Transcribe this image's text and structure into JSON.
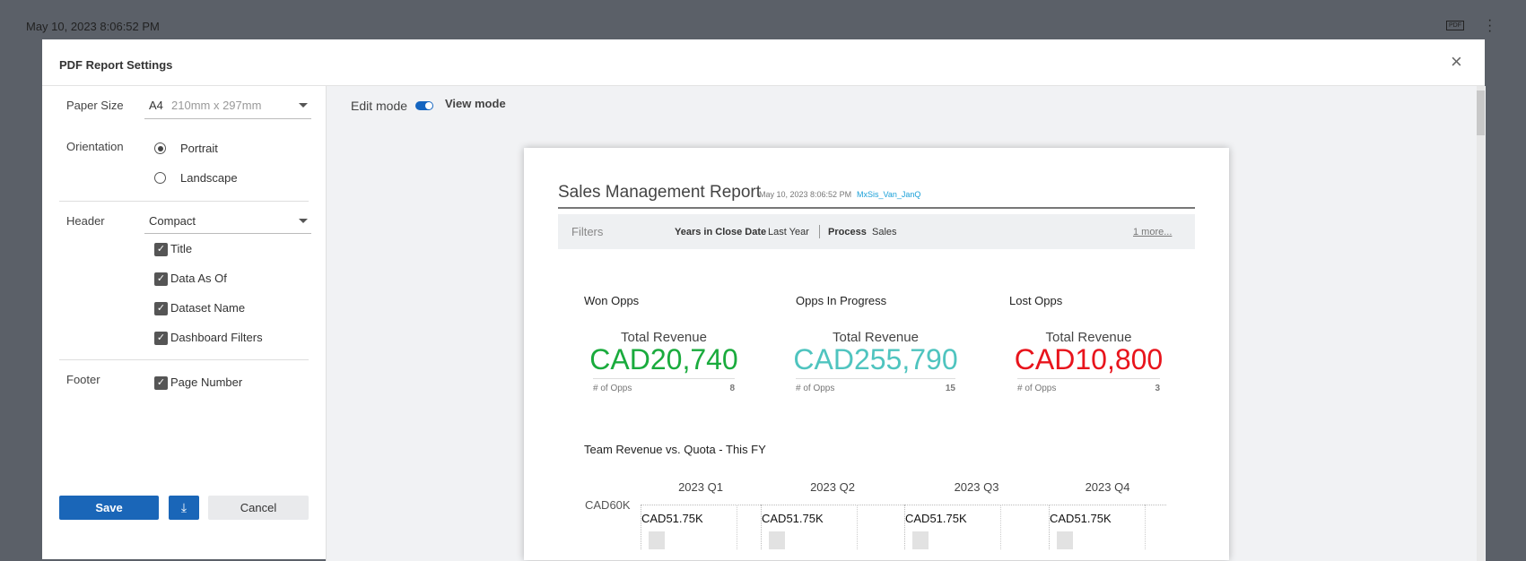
{
  "topbar": {
    "timestamp": "May 10, 2023 8:06:52 PM",
    "pdf_icon": "PDF"
  },
  "dialog": {
    "title": "PDF Report Settings",
    "settings": {
      "paper_size": {
        "label": "Paper Size",
        "value": "A4",
        "detail": "210mm x 297mm"
      },
      "orientation": {
        "label": "Orientation",
        "options": [
          {
            "text": "Portrait",
            "selected": true
          },
          {
            "text": "Landscape",
            "selected": false
          }
        ]
      },
      "header": {
        "label": "Header",
        "value": "Compact",
        "options": [
          {
            "text": "Title",
            "checked": true
          },
          {
            "text": "Data As Of",
            "checked": true
          },
          {
            "text": "Dataset Name",
            "checked": true
          },
          {
            "text": "Dashboard Filters",
            "checked": true
          }
        ]
      },
      "footer": {
        "label": "Footer",
        "options": [
          {
            "text": "Page Number",
            "checked": true
          }
        ]
      }
    },
    "buttons": {
      "save": "Save",
      "cancel": "Cancel"
    },
    "mode": {
      "edit": "Edit mode",
      "view": "View mode"
    }
  },
  "report": {
    "title": "Sales Management Report",
    "date": "May 10, 2023 8:06:52 PM",
    "dataset": "MxSis_Van_JanQ",
    "filters": {
      "label": "Filters",
      "items": [
        {
          "name": "Years in Close Date",
          "value": "Last Year"
        },
        {
          "name": "Process",
          "value": "Sales"
        }
      ],
      "more": "1 more..."
    },
    "kpis": [
      {
        "title": "Won Opps",
        "metric": "Total Revenue",
        "value": "CAD20,740",
        "color": "#1aab3d",
        "count_label": "# of Opps",
        "count": "8"
      },
      {
        "title": "Opps In Progress",
        "metric": "Total Revenue",
        "value": "CAD255,790",
        "color": "#4fc4bf",
        "count_label": "# of Opps",
        "count": "15"
      },
      {
        "title": "Lost Opps",
        "metric": "Total Revenue",
        "value": "CAD10,800",
        "color": "#e8141c",
        "count_label": "# of Opps",
        "count": "3"
      }
    ],
    "chart": {
      "title": "Team Revenue vs. Quota - This FY",
      "axis_label": "CAD60K",
      "quarters": [
        "2023 Q1",
        "2023 Q2",
        "2023 Q3",
        "2023 Q4"
      ],
      "bar_labels": [
        "CAD51.75K",
        "CAD51.75K",
        "CAD51.75K",
        "CAD51.75K"
      ]
    }
  }
}
